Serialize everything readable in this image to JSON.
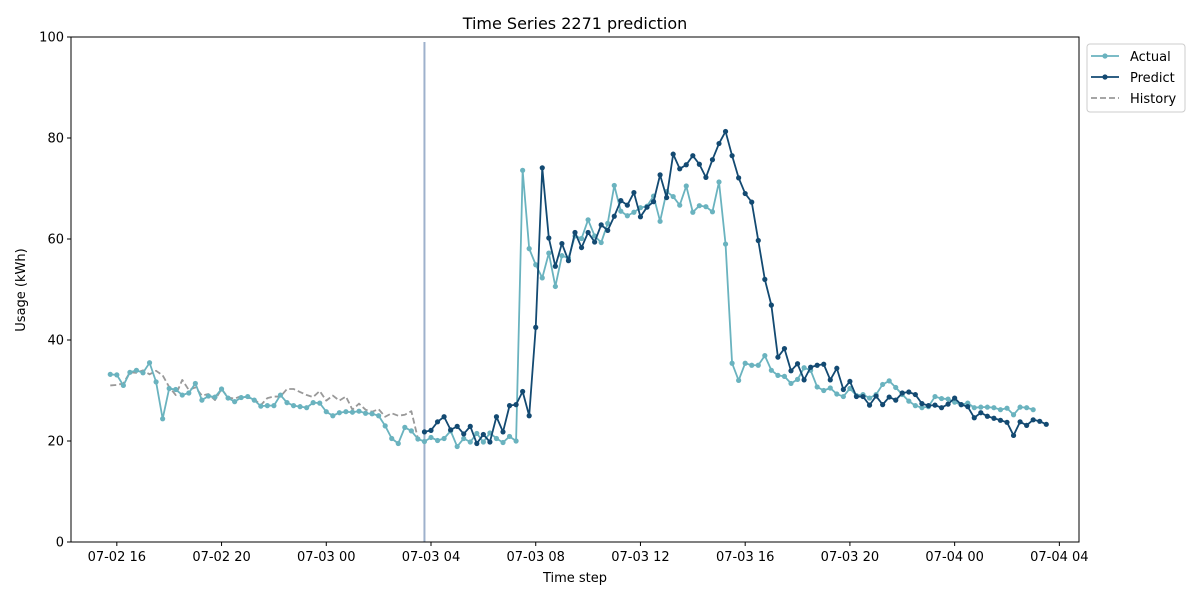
{
  "chart_data": {
    "type": "line",
    "title": "Time Series 2271 prediction",
    "xlabel": "Time step",
    "ylabel": "Usage (kWh)",
    "ylim": [
      0,
      100
    ],
    "yticks": [
      0,
      20,
      40,
      60,
      80,
      100
    ],
    "xlim": [
      "2024-07-02 14:15",
      "2024-07-04 04:45"
    ],
    "xticks": [
      {
        "t": "2024-07-02 16:00",
        "label": "07-02 16"
      },
      {
        "t": "2024-07-02 20:00",
        "label": "07-02 20"
      },
      {
        "t": "2024-07-03 00:00",
        "label": "07-03 00"
      },
      {
        "t": "2024-07-03 04:00",
        "label": "07-03 04"
      },
      {
        "t": "2024-07-03 08:00",
        "label": "07-03 08"
      },
      {
        "t": "2024-07-03 12:00",
        "label": "07-03 12"
      },
      {
        "t": "2024-07-03 16:00",
        "label": "07-03 16"
      },
      {
        "t": "2024-07-03 20:00",
        "label": "07-03 20"
      },
      {
        "t": "2024-07-04 00:00",
        "label": "07-04 00"
      },
      {
        "t": "2024-07-04 04:00",
        "label": "07-04 04"
      }
    ],
    "step_minutes": 15,
    "legend_position": "outside top-right",
    "grid": false,
    "vline": "2024-07-03 03:45",
    "series": [
      {
        "name": "Actual",
        "color": "#6ab3bf",
        "style": "solid",
        "marker": "dot",
        "start": "2024-07-02 15:45",
        "values": [
          33.2,
          33.1,
          31.0,
          33.6,
          34.0,
          33.5,
          35.5,
          31.7,
          24.4,
          30.4,
          30.2,
          29.1,
          29.5,
          31.4,
          28.1,
          28.9,
          28.7,
          30.3,
          28.5,
          27.8,
          28.6,
          28.8,
          28.1,
          26.9,
          27.0,
          27.0,
          29.1,
          27.6,
          27.0,
          26.8,
          26.6,
          27.6,
          27.5,
          25.8,
          25.0,
          25.6,
          25.8,
          25.7,
          25.9,
          25.5,
          25.4,
          25.0,
          23.0,
          20.5,
          19.5,
          22.7,
          22.0,
          20.4,
          19.9,
          20.7,
          20.1,
          20.5,
          22.0,
          18.9,
          20.5,
          19.8,
          21.5,
          19.8,
          21.6,
          20.5,
          19.7,
          20.9,
          20.0,
          73.6,
          58.1,
          54.9,
          52.3,
          57.2,
          50.6,
          56.7,
          56.2,
          60.6,
          60.1,
          63.8,
          60.6,
          59.3,
          63.1,
          70.6,
          65.5,
          64.6,
          65.3,
          66.2,
          66.5,
          68.5,
          63.5,
          69.4,
          68.4,
          66.7,
          70.5,
          65.3,
          66.6,
          66.4,
          65.4,
          71.3,
          59.0,
          35.4,
          32.0,
          35.4,
          35.0,
          35.0,
          36.9,
          34.0,
          33.0,
          32.8,
          31.4,
          32.2,
          34.5,
          34.0,
          30.7,
          30.0,
          30.5,
          29.3,
          28.8,
          30.4,
          29.0,
          29.2,
          28.5,
          29.2,
          31.2,
          31.9,
          30.6,
          29.2,
          27.9,
          27.0,
          26.6,
          26.8,
          28.8,
          28.4,
          28.3,
          27.7,
          27.2,
          27.5,
          26.6,
          26.7,
          26.7,
          26.6,
          26.2,
          26.5,
          25.2,
          26.7,
          26.6,
          26.2
        ]
      },
      {
        "name": "Predict",
        "color": "#134a72",
        "style": "solid",
        "marker": "dot",
        "start": "2024-07-03 03:45",
        "values": [
          21.8,
          22.1,
          23.8,
          24.8,
          22.2,
          22.9,
          21.4,
          22.9,
          19.5,
          21.3,
          19.8,
          24.8,
          21.8,
          27.0,
          27.2,
          29.8,
          25.0,
          42.5,
          74.1,
          60.2,
          54.6,
          59.1,
          55.7,
          61.3,
          58.3,
          61.3,
          59.4,
          62.8,
          61.7,
          64.5,
          67.6,
          66.7,
          69.2,
          64.4,
          66.3,
          67.4,
          72.7,
          68.2,
          76.8,
          73.9,
          74.7,
          76.5,
          74.8,
          72.2,
          75.7,
          78.9,
          81.3,
          76.5,
          72.1,
          69.0,
          67.3,
          59.7,
          52.0,
          46.9,
          36.6,
          38.3,
          33.9,
          35.3,
          32.1,
          34.6,
          35.0,
          35.2,
          32.1,
          34.4,
          30.2,
          31.8,
          28.8,
          28.8,
          27.1,
          28.9,
          27.2,
          28.7,
          28.1,
          29.5,
          29.7,
          29.2,
          27.4,
          27.0,
          27.1,
          26.6,
          27.3,
          28.5,
          27.2,
          26.8,
          24.6,
          25.6,
          24.9,
          24.5,
          24.1,
          23.7,
          21.1,
          23.8,
          23.1,
          24.2,
          23.9,
          23.3
        ]
      },
      {
        "name": "History",
        "color": "#999999",
        "style": "dashed",
        "marker": "none",
        "start": "2024-07-02 15:45",
        "values": [
          31.0,
          31.1,
          31.4,
          33.6,
          33.5,
          34.0,
          33.2,
          33.9,
          33.0,
          30.7,
          29.1,
          32.1,
          30.1,
          30.6,
          29.0,
          29.3,
          28.1,
          30.3,
          28.6,
          28.4,
          28.9,
          28.6,
          28.3,
          27.1,
          28.5,
          28.8,
          28.8,
          30.3,
          30.3,
          29.7,
          29.1,
          28.7,
          29.9,
          28.0,
          29.0,
          28.0,
          28.8,
          26.2,
          27.4,
          26.2,
          25.8,
          26.3,
          24.8,
          25.5,
          25.0,
          25.2,
          25.9,
          20.5
        ]
      }
    ]
  }
}
